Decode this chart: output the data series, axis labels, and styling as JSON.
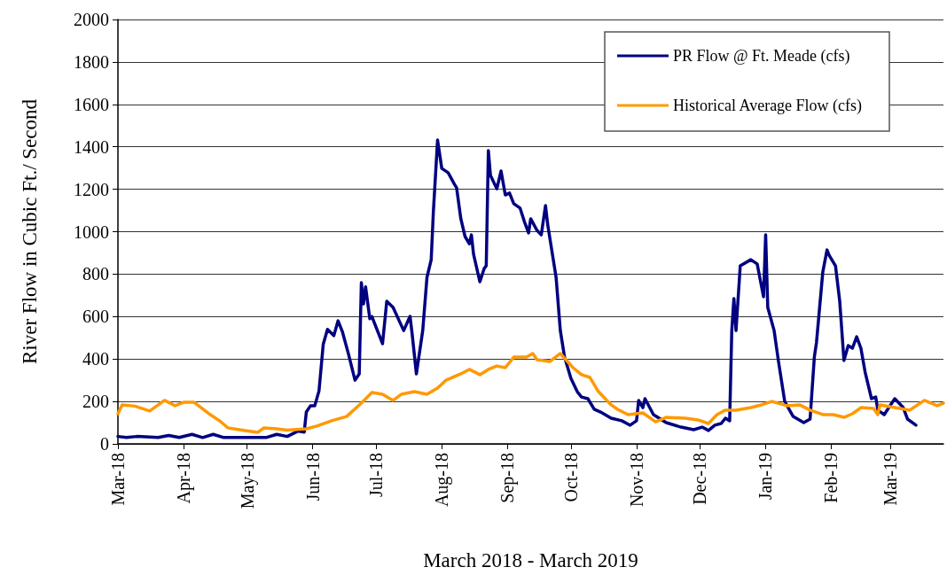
{
  "chart_data": {
    "type": "line",
    "xlabel": "March 2018 - March 2019",
    "ylabel": "River Flow in Cubic Ft./ Second",
    "xlim": [
      "2018-03-01",
      "2019-03-26"
    ],
    "xticks": [
      {
        "value": "2018-03-01",
        "label": "Mar-18"
      },
      {
        "value": "2018-04-01",
        "label": "Apr-18"
      },
      {
        "value": "2018-05-01",
        "label": "May-18"
      },
      {
        "value": "2018-06-01",
        "label": "Jun-18"
      },
      {
        "value": "2018-07-01",
        "label": "Jul-18"
      },
      {
        "value": "2018-08-01",
        "label": "Aug-18"
      },
      {
        "value": "2018-09-01",
        "label": "Sep-18"
      },
      {
        "value": "2018-10-01",
        "label": "Oct-18"
      },
      {
        "value": "2018-11-01",
        "label": "Nov-18"
      },
      {
        "value": "2018-12-01",
        "label": "Dec-18"
      },
      {
        "value": "2019-01-01",
        "label": "Jan-19"
      },
      {
        "value": "2019-02-01",
        "label": "Feb-19"
      },
      {
        "value": "2019-03-01",
        "label": "Mar-19"
      }
    ],
    "ylim": [
      0,
      2000
    ],
    "yticks": [
      0,
      200,
      400,
      600,
      800,
      1000,
      1200,
      1400,
      1600,
      1800,
      2000
    ],
    "grid": "y",
    "legend": "top right",
    "marker": "none",
    "line_style": "solid",
    "series": [
      {
        "name": "PR Flow @ Ft. Meade (cfs)",
        "color": "#000080",
        "x": [
          "2018-03-01",
          "2018-03-05",
          "2018-03-10",
          "2018-03-20",
          "2018-03-25",
          "2018-03-30",
          "2018-04-05",
          "2018-04-10",
          "2018-04-15",
          "2018-04-20",
          "2018-05-01",
          "2018-05-10",
          "2018-05-15",
          "2018-05-20",
          "2018-05-25",
          "2018-05-28",
          "2018-05-29",
          "2018-05-31",
          "2018-06-02",
          "2018-06-04",
          "2018-06-06",
          "2018-06-08",
          "2018-06-11",
          "2018-06-13",
          "2018-06-15",
          "2018-06-18",
          "2018-06-21",
          "2018-06-23",
          "2018-06-24",
          "2018-06-25",
          "2018-06-26",
          "2018-06-28",
          "2018-06-29",
          "2018-07-04",
          "2018-07-06",
          "2018-07-09",
          "2018-07-14",
          "2018-07-17",
          "2018-07-18",
          "2018-07-20",
          "2018-07-23",
          "2018-07-25",
          "2018-07-27",
          "2018-07-28",
          "2018-07-30",
          "2018-08-01",
          "2018-08-04",
          "2018-08-07",
          "2018-08-08",
          "2018-08-10",
          "2018-08-12",
          "2018-08-14",
          "2018-08-15",
          "2018-08-16",
          "2018-08-19",
          "2018-08-21",
          "2018-08-22",
          "2018-08-23",
          "2018-08-24",
          "2018-08-27",
          "2018-08-29",
          "2018-08-31",
          "2018-09-02",
          "2018-09-04",
          "2018-09-07",
          "2018-09-09",
          "2018-09-11",
          "2018-09-12",
          "2018-09-15",
          "2018-09-17",
          "2018-09-19",
          "2018-09-20",
          "2018-09-22",
          "2018-09-24",
          "2018-09-26",
          "2018-09-28",
          "2018-10-01",
          "2018-10-04",
          "2018-10-06",
          "2018-10-09",
          "2018-10-12",
          "2018-10-15",
          "2018-10-20",
          "2018-10-25",
          "2018-10-29",
          "2018-11-01",
          "2018-11-02",
          "2018-11-04",
          "2018-11-05",
          "2018-11-09",
          "2018-11-15",
          "2018-11-22",
          "2018-11-28",
          "2018-12-02",
          "2018-12-05",
          "2018-12-08",
          "2018-12-11",
          "2018-12-13",
          "2018-12-15",
          "2018-12-16",
          "2018-12-17",
          "2018-12-18",
          "2018-12-20",
          "2018-12-25",
          "2018-12-28",
          "2018-12-31",
          "2019-01-01",
          "2019-01-02",
          "2019-01-05",
          "2019-01-07",
          "2019-01-10",
          "2019-01-14",
          "2019-01-19",
          "2019-01-22",
          "2019-01-24",
          "2019-01-25",
          "2019-01-28",
          "2019-01-30",
          "2019-01-31",
          "2019-02-03",
          "2019-02-05",
          "2019-02-07",
          "2019-02-09",
          "2019-02-11",
          "2019-02-13",
          "2019-02-15",
          "2019-02-17",
          "2019-02-20",
          "2019-02-22",
          "2019-02-23",
          "2019-02-26",
          "2019-03-03",
          "2019-03-07",
          "2019-03-09",
          "2019-03-13"
        ],
        "values": [
          35,
          30,
          35,
          30,
          40,
          30,
          45,
          30,
          45,
          30,
          30,
          30,
          45,
          35,
          60,
          55,
          150,
          180,
          180,
          250,
          470,
          540,
          510,
          580,
          530,
          420,
          300,
          330,
          760,
          660,
          740,
          590,
          600,
          472,
          672,
          643,
          534,
          601,
          518,
          330,
          534,
          785,
          868,
          1090,
          1432,
          1298,
          1278,
          1223,
          1207,
          1061,
          977,
          943,
          985,
          894,
          764,
          826,
          839,
          1382,
          1265,
          1202,
          1286,
          1173,
          1182,
          1132,
          1111,
          1048,
          994,
          1061,
          1006,
          985,
          1123,
          1036,
          910,
          785,
          534,
          409,
          309,
          246,
          221,
          213,
          163,
          150,
          121,
          109,
          88,
          109,
          205,
          171,
          213,
          138,
          100,
          79,
          67,
          79,
          63,
          88,
          96,
          121,
          109,
          534,
          685,
          534,
          839,
          868,
          848,
          693,
          985,
          643,
          534,
          393,
          200,
          129,
          100,
          117,
          409,
          476,
          810,
          914,
          889,
          839,
          672,
          393,
          463,
          451,
          505,
          451,
          338,
          213,
          221,
          159,
          138,
          213,
          171,
          117,
          88
        ]
      },
      {
        "name": "Historical Average Flow (cfs)",
        "color": "#ff9900",
        "x": [
          "2018-03-01",
          "2018-03-03",
          "2018-03-09",
          "2018-03-16",
          "2018-03-23",
          "2018-03-28",
          "2018-04-01",
          "2018-04-06",
          "2018-04-13",
          "2018-04-18",
          "2018-04-22",
          "2018-04-30",
          "2018-05-06",
          "2018-05-09",
          "2018-05-15",
          "2018-05-20",
          "2018-05-29",
          "2018-06-03",
          "2018-06-10",
          "2018-06-17",
          "2018-06-24",
          "2018-06-29",
          "2018-07-04",
          "2018-07-09",
          "2018-07-13",
          "2018-07-19",
          "2018-07-25",
          "2018-07-30",
          "2018-08-03",
          "2018-08-10",
          "2018-08-14",
          "2018-08-19",
          "2018-08-23",
          "2018-08-27",
          "2018-08-31",
          "2018-09-04",
          "2018-09-10",
          "2018-09-13",
          "2018-09-15",
          "2018-09-21",
          "2018-09-26",
          "2018-10-02",
          "2018-10-06",
          "2018-10-10",
          "2018-10-14",
          "2018-10-20",
          "2018-10-23",
          "2018-10-28",
          "2018-11-04",
          "2018-11-10",
          "2018-11-15",
          "2018-11-24",
          "2018-11-30",
          "2018-12-05",
          "2018-12-09",
          "2018-12-13",
          "2018-12-18",
          "2018-12-25",
          "2018-12-30",
          "2019-01-04",
          "2019-01-11",
          "2019-01-17",
          "2019-01-22",
          "2019-01-28",
          "2019-02-02",
          "2019-02-07",
          "2019-02-11",
          "2019-02-15",
          "2019-02-21",
          "2019-02-23",
          "2019-02-24",
          "2019-03-03",
          "2019-03-10",
          "2019-03-17",
          "2019-03-23",
          "2019-03-26"
        ],
        "values": [
          142,
          184,
          178,
          155,
          205,
          180,
          196,
          196,
          142,
          109,
          75,
          63,
          54,
          75,
          71,
          65,
          71,
          84,
          109,
          129,
          192,
          242,
          234,
          205,
          234,
          246,
          234,
          263,
          300,
          330,
          351,
          326,
          351,
          367,
          359,
          409,
          409,
          426,
          397,
          388,
          426,
          359,
          326,
          313,
          246,
          184,
          163,
          138,
          146,
          104,
          125,
          121,
          113,
          96,
          138,
          159,
          159,
          171,
          184,
          200,
          180,
          184,
          159,
          138,
          138,
          125,
          142,
          171,
          167,
          138,
          184,
          171,
          159,
          205,
          180,
          192
        ]
      }
    ]
  }
}
